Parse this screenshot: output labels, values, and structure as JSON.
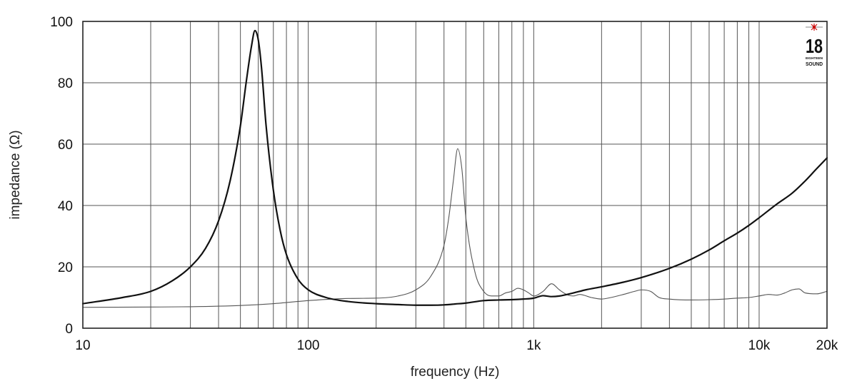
{
  "chart_data": {
    "type": "line",
    "x_scale": "log",
    "xlim": [
      10,
      20000
    ],
    "ylim": [
      0,
      100
    ],
    "xlabel": "frequency (Hz)",
    "ylabel": "impedance (Ω)",
    "x_ticks": [
      {
        "value": 10,
        "label": "10"
      },
      {
        "value": 100,
        "label": "100"
      },
      {
        "value": 1000,
        "label": "1k"
      },
      {
        "value": 10000,
        "label": "10k"
      },
      {
        "value": 20000,
        "label": "20k"
      }
    ],
    "y_ticks": [
      {
        "value": 0,
        "label": "0"
      },
      {
        "value": 20,
        "label": "20"
      },
      {
        "value": 40,
        "label": "40"
      },
      {
        "value": 60,
        "label": "60"
      },
      {
        "value": 80,
        "label": "80"
      },
      {
        "value": 100,
        "label": "100"
      }
    ],
    "grid": true,
    "series": [
      {
        "color": "#111111",
        "weight": "thick",
        "x": [
          10,
          15,
          20,
          25,
          30,
          35,
          40,
          45,
          50,
          53,
          56,
          58,
          60,
          62,
          65,
          70,
          75,
          80,
          90,
          100,
          120,
          150,
          200,
          250,
          300,
          350,
          400,
          450,
          500,
          600,
          700,
          800,
          900,
          1000,
          1100,
          1200,
          1300,
          1500,
          1700,
          2000,
          2500,
          3000,
          4000,
          5000,
          6000,
          7000,
          8000,
          9000,
          10000,
          12000,
          14000,
          16000,
          18000,
          20000
        ],
        "y": [
          8,
          10,
          12,
          15.5,
          20,
          26,
          35,
          48,
          66,
          80,
          92,
          97,
          94,
          85,
          66,
          45,
          32,
          24,
          16,
          12.5,
          10,
          8.7,
          8,
          7.7,
          7.5,
          7.5,
          7.6,
          7.9,
          8.2,
          9,
          9.2,
          9.3,
          9.5,
          9.8,
          10.6,
          10.3,
          10.5,
          11.5,
          12.5,
          13.5,
          15,
          16.5,
          19.5,
          22.5,
          25.5,
          28.5,
          31,
          33.5,
          36,
          40.5,
          44,
          48,
          52,
          55.5
        ]
      },
      {
        "color": "#555555",
        "weight": "thin",
        "x": [
          10,
          20,
          30,
          50,
          70,
          100,
          150,
          200,
          250,
          300,
          350,
          400,
          420,
          440,
          460,
          480,
          500,
          550,
          600,
          650,
          700,
          750,
          800,
          850,
          900,
          950,
          1000,
          1100,
          1200,
          1300,
          1400,
          1500,
          1600,
          1800,
          2000,
          2200,
          2500,
          2800,
          3000,
          3300,
          3600,
          4000,
          5000,
          6000,
          7000,
          8000,
          9000,
          10000,
          11000,
          12000,
          13000,
          14000,
          15000,
          16000,
          18000,
          20000
        ],
        "y": [
          6.8,
          6.9,
          7,
          7.4,
          8,
          9,
          9.7,
          9.8,
          10.5,
          12.5,
          17,
          27,
          36,
          48,
          58.5,
          52,
          36,
          18,
          12,
          10.5,
          10.5,
          11.5,
          12,
          13,
          12.5,
          11.5,
          10.5,
          12,
          14.5,
          12.5,
          11,
          10.5,
          11,
          10,
          9.5,
          10,
          11,
          12,
          12.5,
          12,
          10,
          9.5,
          9.2,
          9.3,
          9.5,
          9.8,
          10,
          10.5,
          11,
          10.8,
          11.5,
          12.5,
          12.8,
          11.5,
          11.2,
          12
        ]
      }
    ]
  },
  "logo": {
    "number": "18",
    "line1": "EIGHTEEN",
    "line2": "SOUND",
    "star_color": "#cc1111"
  }
}
